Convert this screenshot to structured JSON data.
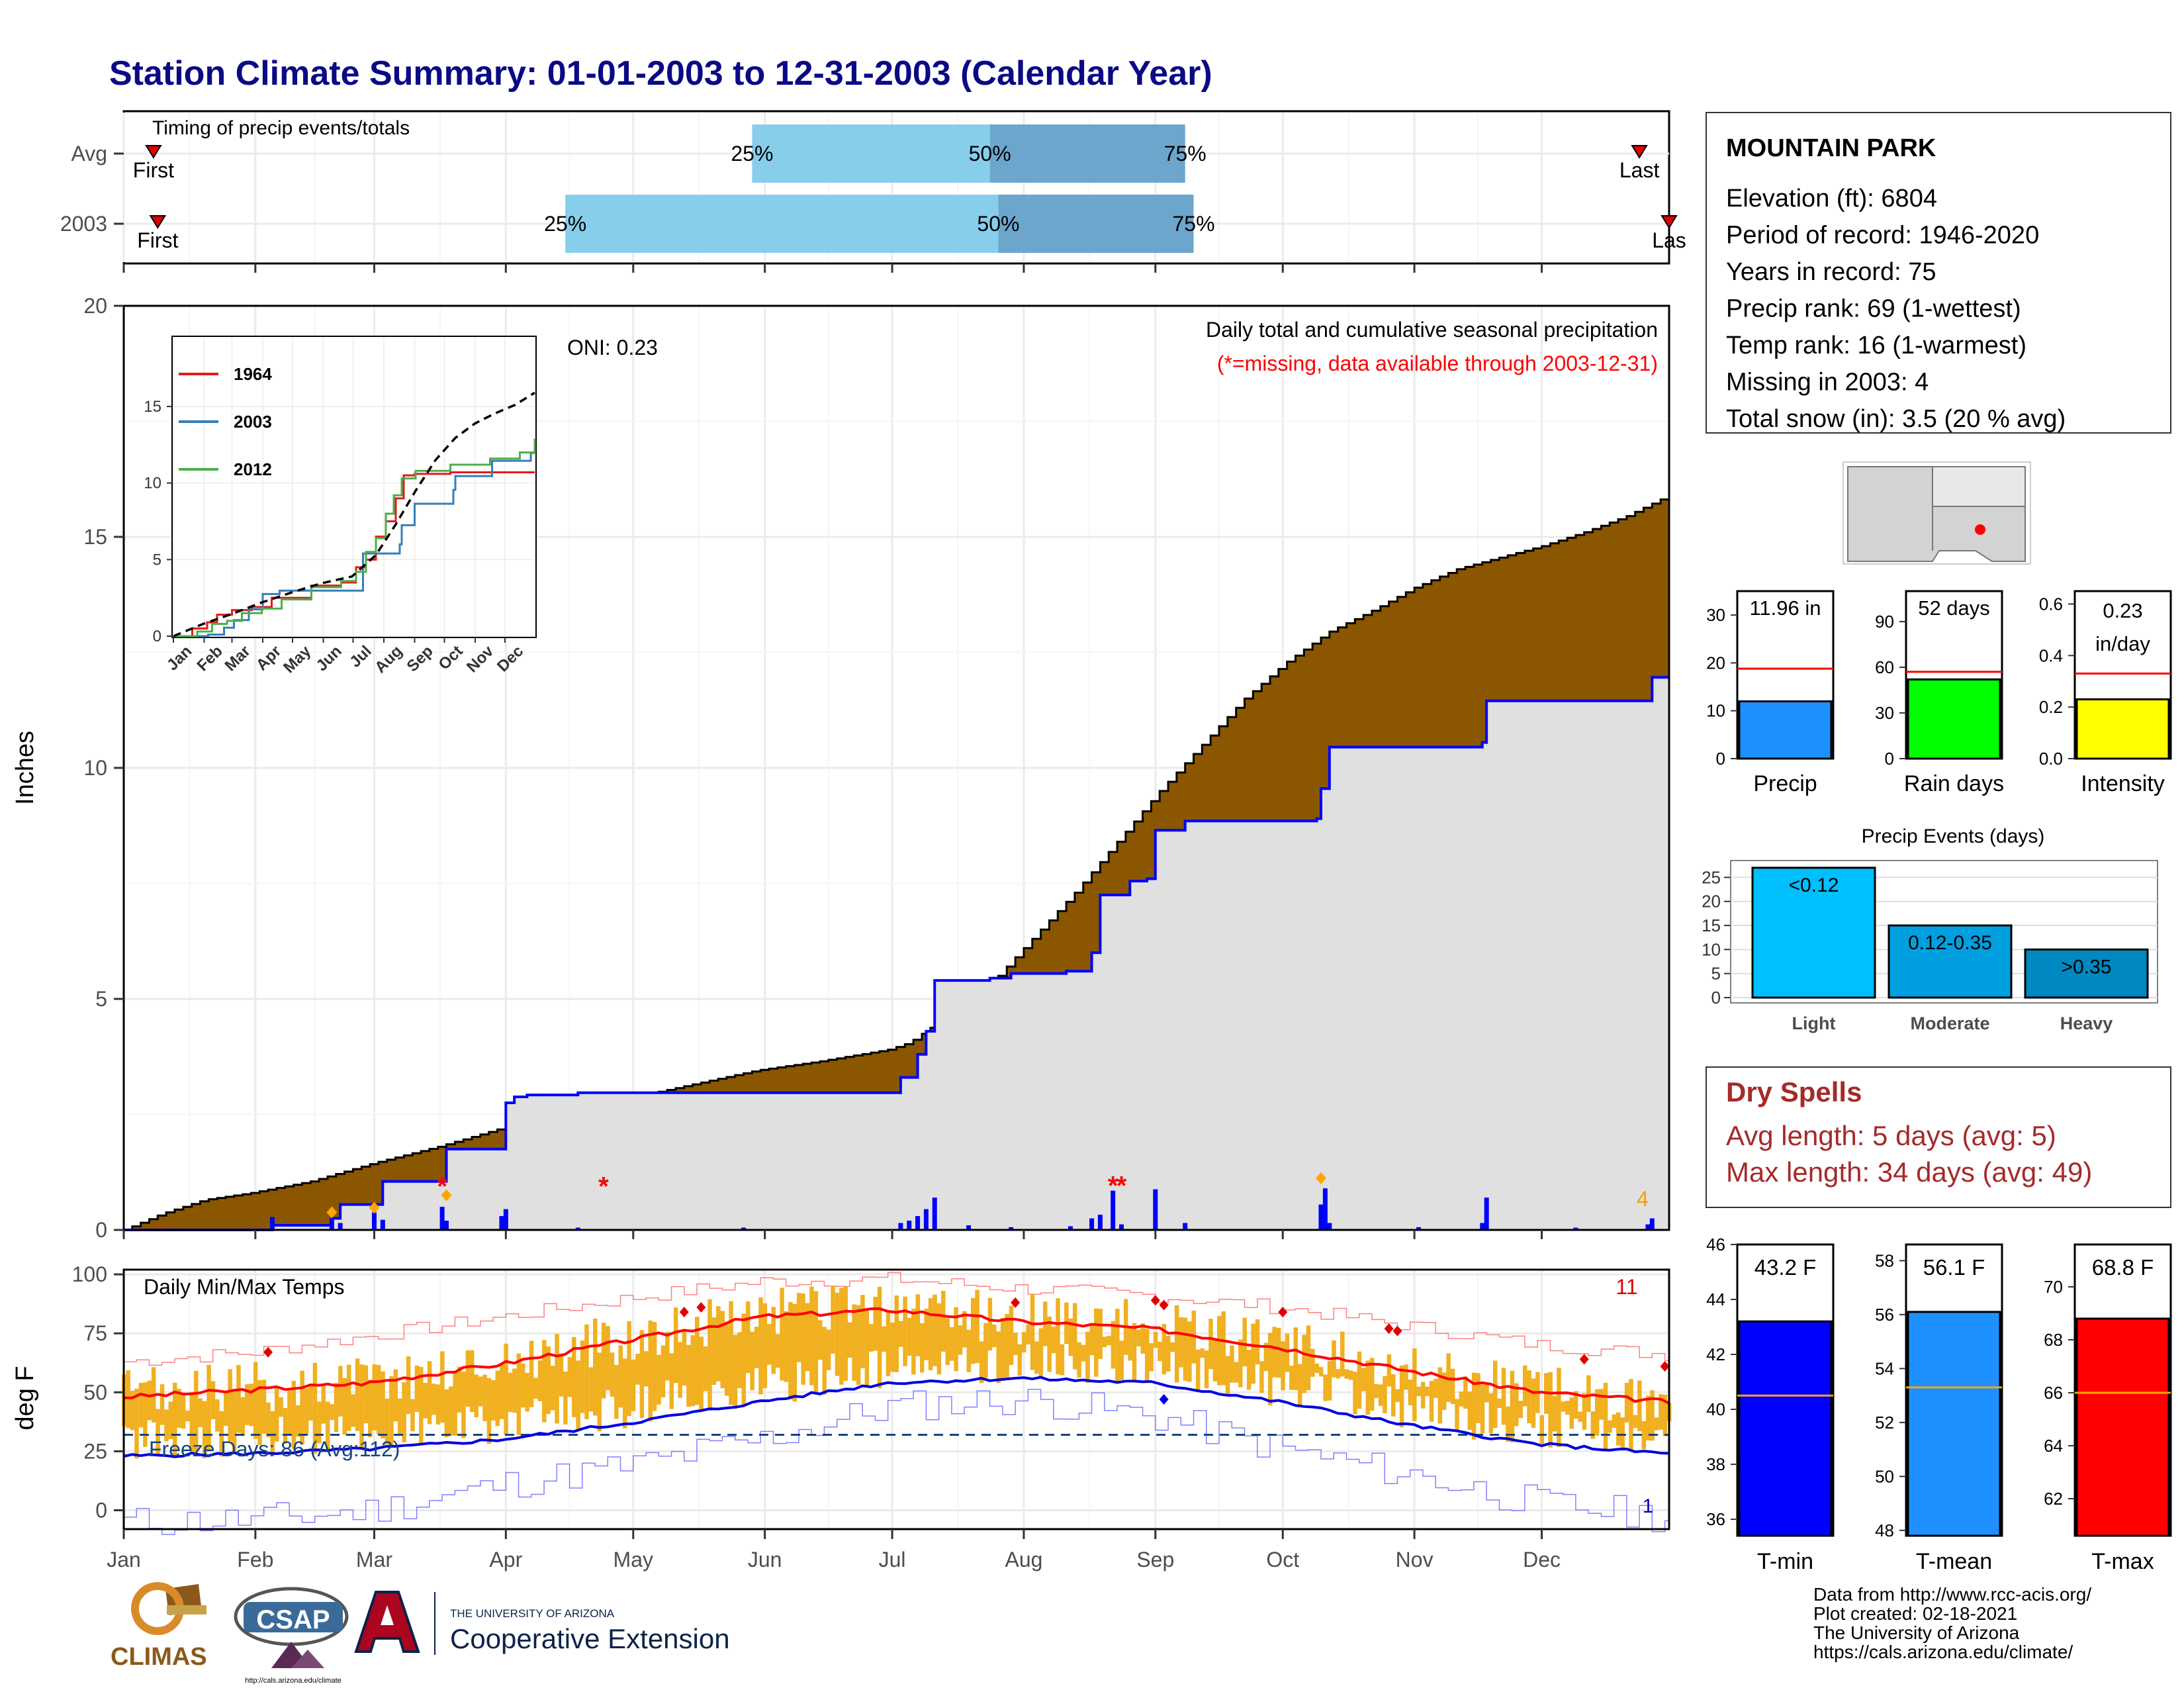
{
  "title": "Station Climate Summary: 01-01-2003 to 12-31-2003 (Calendar Year)",
  "months": [
    "Jan",
    "Feb",
    "Mar",
    "Apr",
    "May",
    "Jun",
    "Jul",
    "Aug",
    "Sep",
    "Oct",
    "Nov",
    "Dec"
  ],
  "timing": {
    "label": "Timing of precip events/totals",
    "rows": [
      {
        "name": "Avg",
        "first_doy": 8,
        "last_doy": 358,
        "p25_doy": 149,
        "p50_doy": 205,
        "p75_doy": 251,
        "first_label": "First",
        "last_label": "Last",
        "p25_label": "25%",
        "p50_label": "50%",
        "p75_label": "75%"
      },
      {
        "name": "2003",
        "first_doy": 9,
        "last_doy": 365,
        "p25_doy": 105,
        "p50_doy": 207,
        "p75_doy": 253,
        "first_label": "First",
        "last_label": "Las",
        "p25_label": "25%",
        "p50_label": "50%",
        "p75_label": "75%"
      }
    ]
  },
  "main": {
    "y_label": "Inches",
    "y_ticks": [
      0,
      5,
      10,
      15,
      20
    ],
    "oni": "ONI: 0.23",
    "note1": "Daily total and cumulative seasonal precipitation",
    "note2": "(*=missing, data available through 2003-12-31)",
    "missing_count": "4"
  },
  "inset": {
    "y_ticks": [
      0,
      5,
      10,
      15
    ],
    "legend": [
      {
        "name": "1964",
        "color": "#e41a1c"
      },
      {
        "name": "2003",
        "color": "#377eb8"
      },
      {
        "name": "2012",
        "color": "#4daf4a"
      }
    ]
  },
  "temps": {
    "label": "Daily Min/Max Temps",
    "y_label": "deg F",
    "y_ticks": [
      0,
      25,
      50,
      75,
      100
    ],
    "freeze_label": "Freeze Days: 86 (Avg:112)",
    "record_high_count": "11",
    "record_low_count": "1"
  },
  "station": {
    "name": "MOUNTAIN PARK",
    "lines": [
      "Elevation (ft): 6804",
      "Period of record: 1946-2020",
      "Years in record: 75",
      "Precip rank: 69 (1-wettest)",
      "Temp rank: 16 (1-warmest)",
      "Missing in 2003: 4",
      "Total snow (in): 3.5 (20 % avg)"
    ]
  },
  "mini_bars": [
    {
      "label": "Precip",
      "value_text": "11.96 in",
      "value": 11.96,
      "avg": 18.8,
      "ymax": 35,
      "ticks": [
        0,
        10,
        20,
        30
      ],
      "color": "#1e90ff"
    },
    {
      "label": "Rain days",
      "value_text": "52 days",
      "value": 52,
      "avg": 57,
      "ymax": 110,
      "ticks": [
        0,
        30,
        60,
        90
      ],
      "color": "#00ff00"
    },
    {
      "label": "Intensity",
      "value_text": "0.23 in/day",
      "value_text_1": "0.23",
      "value_text_2": "in/day",
      "value": 0.23,
      "avg": 0.33,
      "ymax": 0.65,
      "ticks": [
        "0.0",
        "0.2",
        "0.4",
        "0.6"
      ],
      "color": "#ffff00"
    }
  ],
  "events": {
    "title": "Precip Events (days)",
    "ticks": [
      0,
      5,
      10,
      15,
      20,
      25
    ],
    "bars": [
      {
        "label": "Light",
        "inner": "<0.12",
        "value": 27,
        "color": "#00bfff"
      },
      {
        "label": "Moderate",
        "inner": "0.12-0.35",
        "value": 15,
        "color": "#00a0e0"
      },
      {
        "label": "Heavy",
        "inner": ">0.35",
        "value": 10,
        "color": "#0088c0"
      }
    ]
  },
  "dry_spells": {
    "title": "Dry Spells",
    "line1": "Avg length: 5 days (avg: 5)",
    "line2": "Max length: 34 days (avg: 49)"
  },
  "temp_bars": [
    {
      "label": "T-min",
      "value_text": "43.2 F",
      "value": 43.2,
      "avg": 40.5,
      "ymin": 35.4,
      "ymax": 46,
      "ticks": [
        36,
        38,
        40,
        42,
        44,
        46
      ],
      "color": "#0000ff"
    },
    {
      "label": "T-mean",
      "value_text": "56.1 F",
      "value": 56.1,
      "avg": 53.3,
      "ymin": 47.8,
      "ymax": 58.6,
      "ticks": [
        48,
        50,
        52,
        54,
        56,
        58
      ],
      "color": "#1e90ff"
    },
    {
      "label": "T-max",
      "value_text": "68.8 F",
      "value": 68.8,
      "avg": 66.0,
      "ymin": 60.6,
      "ymax": 71.6,
      "ticks": [
        62,
        64,
        66,
        68,
        70
      ],
      "color": "#ff0000"
    }
  ],
  "logos": {
    "climas": "CLIMAS",
    "csap": "CSAP",
    "csap_url": "http://cals.arizona.edu/climate",
    "ua_small": "THE UNIVERSITY OF ARIZONA",
    "ua_big": "Cooperative Extension"
  },
  "credits": [
    "Data from http://www.rcc-acis.org/",
    "Plot created: 02-18-2021",
    "The University of Arizona",
    "https://cals.arizona.edu/climate/"
  ],
  "chart_data": {
    "type": "area",
    "title": "Daily total and cumulative seasonal precipitation",
    "ylabel": "Inches",
    "ylim": [
      0,
      20
    ],
    "x": "day of year 2003 (1-365)",
    "series": [
      {
        "name": "2003",
        "points": [
          [
            1,
            0
          ],
          [
            36,
            0.1
          ],
          [
            50,
            0.25
          ],
          [
            52,
            0.55
          ],
          [
            60,
            0.55
          ],
          [
            62,
            1.05
          ],
          [
            75,
            1.05
          ],
          [
            77,
            1.75
          ],
          [
            89,
            1.75
          ],
          [
            91,
            2.75
          ],
          [
            93,
            2.88
          ],
          [
            96,
            2.92
          ],
          [
            106,
            2.92
          ],
          [
            108,
            2.97
          ],
          [
            182,
            2.97
          ],
          [
            184,
            3.3
          ],
          [
            188,
            3.8
          ],
          [
            190,
            4.3
          ],
          [
            192,
            5.4
          ],
          [
            205,
            5.45
          ],
          [
            210,
            5.55
          ],
          [
            223,
            5.6
          ],
          [
            229,
            6.0
          ],
          [
            231,
            7.25
          ],
          [
            236,
            7.25
          ],
          [
            238,
            7.55
          ],
          [
            242,
            7.6
          ],
          [
            244,
            8.65
          ],
          [
            251,
            8.85
          ],
          [
            282,
            8.9
          ],
          [
            283,
            9.55
          ],
          [
            285,
            10.45
          ],
          [
            321,
            10.55
          ],
          [
            322,
            11.45
          ],
          [
            360,
            11.45
          ],
          [
            361,
            11.96
          ],
          [
            365,
            11.96
          ]
        ]
      },
      {
        "name": "Avg",
        "points": [
          [
            1,
            0
          ],
          [
            10,
            0.35
          ],
          [
            20,
            0.65
          ],
          [
            31,
            0.8
          ],
          [
            45,
            1.05
          ],
          [
            60,
            1.45
          ],
          [
            75,
            1.8
          ],
          [
            90,
            2.2
          ],
          [
            105,
            2.55
          ],
          [
            120,
            2.85
          ],
          [
            135,
            3.15
          ],
          [
            150,
            3.45
          ],
          [
            165,
            3.65
          ],
          [
            181,
            3.9
          ],
          [
            186,
            4.05
          ],
          [
            196,
            4.7
          ],
          [
            205,
            5.3
          ],
          [
            215,
            6.3
          ],
          [
            225,
            7.3
          ],
          [
            235,
            8.4
          ],
          [
            245,
            9.5
          ],
          [
            255,
            10.5
          ],
          [
            265,
            11.5
          ],
          [
            275,
            12.3
          ],
          [
            285,
            12.95
          ],
          [
            295,
            13.4
          ],
          [
            305,
            13.9
          ],
          [
            315,
            14.3
          ],
          [
            325,
            14.55
          ],
          [
            335,
            14.8
          ],
          [
            345,
            15.1
          ],
          [
            355,
            15.45
          ],
          [
            365,
            15.9
          ]
        ]
      }
    ],
    "daily_bars": [
      [
        36,
        0.28
      ],
      [
        50,
        0.25
      ],
      [
        52,
        0.15
      ],
      [
        60,
        0.38
      ],
      [
        62,
        0.22
      ],
      [
        76,
        0.5
      ],
      [
        77,
        0.2
      ],
      [
        90,
        0.3
      ],
      [
        91,
        0.45
      ],
      [
        108,
        0.05
      ],
      [
        147,
        0.05
      ],
      [
        184,
        0.15
      ],
      [
        186,
        0.2
      ],
      [
        188,
        0.3
      ],
      [
        190,
        0.45
      ],
      [
        192,
        0.7
      ],
      [
        200,
        0.1
      ],
      [
        210,
        0.06
      ],
      [
        224,
        0.08
      ],
      [
        229,
        0.25
      ],
      [
        231,
        0.33
      ],
      [
        234,
        0.85
      ],
      [
        236,
        0.12
      ],
      [
        244,
        0.88
      ],
      [
        251,
        0.15
      ],
      [
        283,
        0.55
      ],
      [
        284,
        0.9
      ],
      [
        285,
        0.15
      ],
      [
        306,
        0.06
      ],
      [
        321,
        0.15
      ],
      [
        322,
        0.7
      ],
      [
        343,
        0.05
      ],
      [
        360,
        0.12
      ],
      [
        361,
        0.25
      ]
    ],
    "inset": {
      "type": "line",
      "ylim": [
        0,
        19.5
      ],
      "series": [
        {
          "name": "1964",
          "points": [
            [
              1,
              0
            ],
            [
              20,
              0.5
            ],
            [
              35,
              0.9
            ],
            [
              45,
              1.4
            ],
            [
              60,
              1.7
            ],
            [
              80,
              1.9
            ],
            [
              100,
              2.5
            ],
            [
              140,
              3.3
            ],
            [
              170,
              3.5
            ],
            [
              185,
              4.5
            ],
            [
              195,
              5.0
            ],
            [
              205,
              6.5
            ],
            [
              215,
              7.5
            ],
            [
              225,
              9.0
            ],
            [
              233,
              10.5
            ],
            [
              244,
              10.6
            ],
            [
              260,
              10.6
            ],
            [
              280,
              10.7
            ],
            [
              300,
              10.7
            ],
            [
              365,
              10.7
            ]
          ]
        },
        {
          "name": "2003",
          "points": [
            [
              1,
              0
            ],
            [
              36,
              0.1
            ],
            [
              52,
              0.55
            ],
            [
              62,
              1.05
            ],
            [
              77,
              1.75
            ],
            [
              91,
              2.75
            ],
            [
              108,
              2.97
            ],
            [
              182,
              2.97
            ],
            [
              192,
              5.4
            ],
            [
              229,
              6.0
            ],
            [
              231,
              7.25
            ],
            [
              244,
              8.65
            ],
            [
              283,
              9.55
            ],
            [
              285,
              10.45
            ],
            [
              322,
              11.45
            ],
            [
              360,
              11.45
            ],
            [
              361,
              11.96
            ],
            [
              365,
              11.96
            ]
          ]
        },
        {
          "name": "2012",
          "points": [
            [
              1,
              0
            ],
            [
              25,
              0.3
            ],
            [
              40,
              0.8
            ],
            [
              55,
              1.0
            ],
            [
              70,
              1.5
            ],
            [
              90,
              1.8
            ],
            [
              110,
              2.4
            ],
            [
              140,
              3.2
            ],
            [
              170,
              3.6
            ],
            [
              185,
              4.2
            ],
            [
              195,
              5.5
            ],
            [
              205,
              6.4
            ],
            [
              215,
              8.0
            ],
            [
              223,
              9.2
            ],
            [
              231,
              10.3
            ],
            [
              245,
              10.8
            ],
            [
              280,
              11.2
            ],
            [
              320,
              11.6
            ],
            [
              350,
              12.0
            ],
            [
              365,
              12.9
            ]
          ]
        },
        {
          "name": "Avg",
          "dashed": true,
          "points": [
            [
              1,
              0
            ],
            [
              31,
              0.8
            ],
            [
              60,
              1.45
            ],
            [
              90,
              2.2
            ],
            [
              120,
              2.85
            ],
            [
              150,
              3.45
            ],
            [
              181,
              3.9
            ],
            [
              205,
              5.3
            ],
            [
              225,
              7.3
            ],
            [
              245,
              9.5
            ],
            [
              265,
              11.5
            ],
            [
              285,
              12.95
            ],
            [
              305,
              13.9
            ],
            [
              325,
              14.55
            ],
            [
              345,
              15.1
            ],
            [
              365,
              15.9
            ]
          ]
        }
      ]
    },
    "temps": {
      "type": "line",
      "ylim": [
        -8,
        102
      ],
      "freeze_line": 32,
      "avg_max": [
        [
          1,
          48
        ],
        [
          31,
          51
        ],
        [
          59,
          54
        ],
        [
          90,
          62
        ],
        [
          120,
          72
        ],
        [
          151,
          82
        ],
        [
          181,
          85
        ],
        [
          212,
          80
        ],
        [
          243,
          77
        ],
        [
          273,
          69
        ],
        [
          304,
          59
        ],
        [
          334,
          50
        ],
        [
          365,
          46
        ]
      ],
      "avg_min": [
        [
          1,
          23
        ],
        [
          31,
          24
        ],
        [
          59,
          26
        ],
        [
          90,
          30
        ],
        [
          120,
          37
        ],
        [
          151,
          46
        ],
        [
          181,
          54
        ],
        [
          212,
          56
        ],
        [
          243,
          54
        ],
        [
          273,
          46
        ],
        [
          304,
          36
        ],
        [
          334,
          28
        ],
        [
          365,
          24
        ]
      ],
      "record_max": [
        [
          1,
          63
        ],
        [
          31,
          67
        ],
        [
          59,
          74
        ],
        [
          90,
          82
        ],
        [
          120,
          90
        ],
        [
          151,
          97
        ],
        [
          181,
          98
        ],
        [
          212,
          94
        ],
        [
          243,
          91
        ],
        [
          273,
          86
        ],
        [
          304,
          78
        ],
        [
          334,
          70
        ],
        [
          365,
          66
        ]
      ],
      "record_min": [
        [
          1,
          -5
        ],
        [
          31,
          -4
        ],
        [
          59,
          0
        ],
        [
          90,
          11
        ],
        [
          120,
          19
        ],
        [
          151,
          30
        ],
        [
          181,
          44
        ],
        [
          212,
          47
        ],
        [
          243,
          40
        ],
        [
          273,
          26
        ],
        [
          304,
          15
        ],
        [
          334,
          3
        ],
        [
          365,
          -3
        ]
      ],
      "record_high_days": [
        [
          35,
          67
        ],
        [
          133,
          84
        ],
        [
          137,
          86
        ],
        [
          211,
          88
        ],
        [
          244,
          89
        ],
        [
          246,
          87
        ],
        [
          274,
          84
        ],
        [
          299,
          77
        ],
        [
          301,
          76
        ],
        [
          345,
          64
        ],
        [
          364,
          61
        ]
      ],
      "record_low_days": [
        [
          246,
          47
        ]
      ]
    }
  }
}
